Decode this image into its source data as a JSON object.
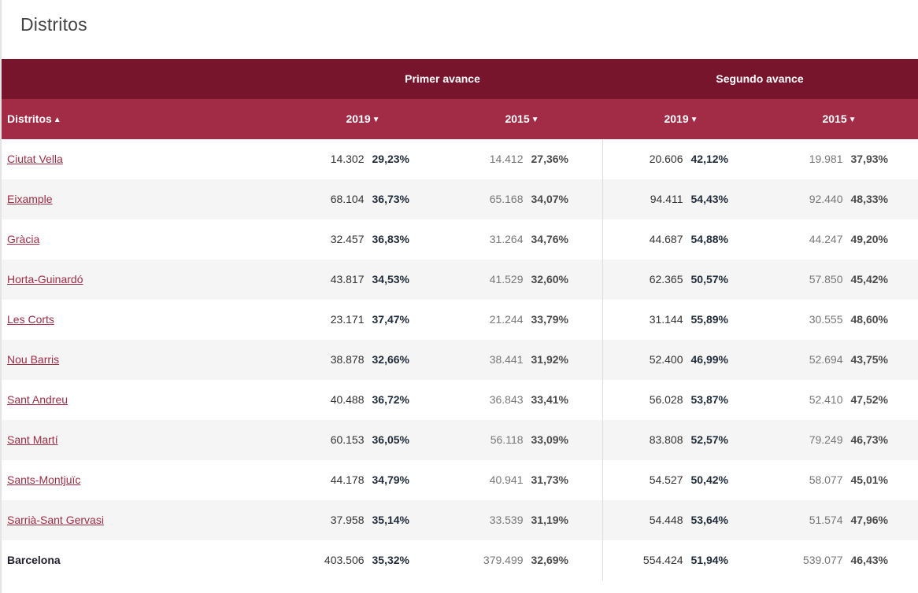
{
  "page_title": "Distritos",
  "groups": {
    "primer": "Primer avance",
    "segundo": "Segundo avance"
  },
  "columns": {
    "distritos": "Distritos",
    "y2019_a": "2019",
    "y2015_a": "2015",
    "y2019_b": "2019",
    "y2015_b": "2015",
    "sort_up": "▲",
    "sort_down": "▼"
  },
  "rows": [
    {
      "name": "Ciutat Vella",
      "p19n": "14.302",
      "p19p": "29,23%",
      "p15n": "14.412",
      "p15p": "27,36%",
      "s19n": "20.606",
      "s19p": "42,12%",
      "s15n": "19.981",
      "s15p": "37,93%"
    },
    {
      "name": "Eixample",
      "p19n": "68.104",
      "p19p": "36,73%",
      "p15n": "65.168",
      "p15p": "34,07%",
      "s19n": "94.411",
      "s19p": "54,43%",
      "s15n": "92.440",
      "s15p": "48,33%"
    },
    {
      "name": "Gràcia",
      "p19n": "32.457",
      "p19p": "36,83%",
      "p15n": "31.264",
      "p15p": "34,76%",
      "s19n": "44.687",
      "s19p": "54,88%",
      "s15n": "44.247",
      "s15p": "49,20%"
    },
    {
      "name": "Horta-Guinardó",
      "p19n": "43.817",
      "p19p": "34,53%",
      "p15n": "41.529",
      "p15p": "32,60%",
      "s19n": "62.365",
      "s19p": "50,57%",
      "s15n": "57.850",
      "s15p": "45,42%"
    },
    {
      "name": "Les Corts",
      "p19n": "23.171",
      "p19p": "37,47%",
      "p15n": "21.244",
      "p15p": "33,79%",
      "s19n": "31.144",
      "s19p": "55,89%",
      "s15n": "30.555",
      "s15p": "48,60%"
    },
    {
      "name": "Nou Barris",
      "p19n": "38.878",
      "p19p": "32,66%",
      "p15n": "38.441",
      "p15p": "31,92%",
      "s19n": "52.400",
      "s19p": "46,99%",
      "s15n": "52.694",
      "s15p": "43,75%"
    },
    {
      "name": "Sant Andreu",
      "p19n": "40.488",
      "p19p": "36,72%",
      "p15n": "36.843",
      "p15p": "33,41%",
      "s19n": "56.028",
      "s19p": "53,87%",
      "s15n": "52.410",
      "s15p": "47,52%"
    },
    {
      "name": "Sant Martí",
      "p19n": "60.153",
      "p19p": "36,05%",
      "p15n": "56.118",
      "p15p": "33,09%",
      "s19n": "83.808",
      "s19p": "52,57%",
      "s15n": "79.249",
      "s15p": "46,73%"
    },
    {
      "name": "Sants-Montjuïc",
      "p19n": "44.178",
      "p19p": "34,79%",
      "p15n": "40.941",
      "p15p": "31,73%",
      "s19n": "54.527",
      "s19p": "50,42%",
      "s15n": "58.077",
      "s15p": "45,01%"
    },
    {
      "name": "Sarrià-Sant Gervasi",
      "p19n": "37.958",
      "p19p": "35,14%",
      "p15n": "33.539",
      "p15p": "31,19%",
      "s19n": "54.448",
      "s19p": "53,64%",
      "s15n": "51.574",
      "s15p": "47,96%"
    }
  ],
  "total": {
    "name": "Barcelona",
    "p19n": "403.506",
    "p19p": "35,32%",
    "p15n": "379.499",
    "p15p": "32,69%",
    "s19n": "554.424",
    "s19p": "51,94%",
    "s15n": "539.077",
    "s15p": "46,43%"
  },
  "colors": {
    "group_header": "#76152c",
    "column_header": "#a22b46",
    "link": "#9b2d44",
    "row_alt": "#f5f5f5"
  }
}
